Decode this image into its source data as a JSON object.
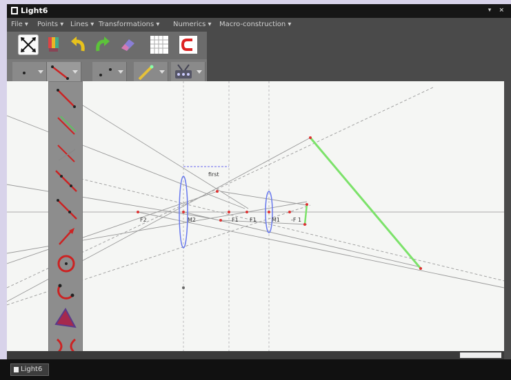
{
  "window": {
    "title": "Light6",
    "controls": "▾ ×"
  },
  "menubar": {
    "items": [
      "File ▾",
      "Points ▾",
      "Lines ▾",
      "Transformations ▾",
      "Numerics ▾",
      "Macro-construction ▾"
    ]
  },
  "toolbar": {
    "buttons": [
      "cursor-move-icon",
      "palette-icon",
      "undo-icon",
      "redo-icon",
      "eraser-icon",
      "grid-icon",
      "magnet-icon"
    ]
  },
  "tool_groups": [
    "points-tool-icon",
    "lines-tool-icon",
    "curves-tool-icon",
    "measure-tool-icon",
    "transform-tool-icon"
  ],
  "lines_menu": {
    "items": [
      "segment-icon",
      "segment-with-length-icon",
      "perpendicular-bisector-icon",
      "line-icon",
      "ray-icon",
      "vector-icon",
      "circle-icon",
      "arc-icon",
      "polygon-icon",
      "locus-icon"
    ]
  },
  "canvas": {
    "labels": {
      "first": "first",
      "f2": "F2",
      "m2": "M2",
      "f1": "F1",
      "f1b": "F1",
      "m1": "M1",
      "f2b": "-F 1"
    }
  },
  "colors": {
    "accent_green": "#7ce26a",
    "lens_blue": "#6677ee",
    "point_red": "#dd3333"
  },
  "taskbar": {
    "app_label": "Light6"
  }
}
